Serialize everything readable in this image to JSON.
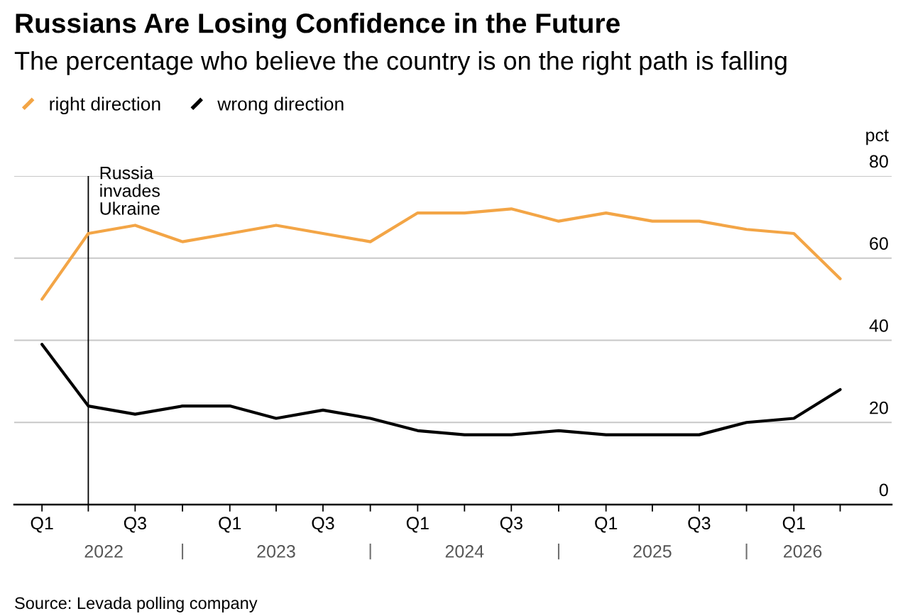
{
  "chart_data": {
    "type": "line",
    "title": "Russians Are Losing Confidence in the Future",
    "subtitle": "The percentage who believe the country is on the right path is falling",
    "x": [
      "2022-01",
      "2022-04",
      "2022-07",
      "2022-10",
      "2023-01",
      "2023-04",
      "2023-07",
      "2023-10",
      "2024-01",
      "2024-04",
      "2024-07",
      "2024-10",
      "2025-01",
      "2025-04",
      "2025-07",
      "2025-10",
      "2026-01",
      "2026-04"
    ],
    "series": [
      {
        "name": "right direction",
        "color": "#f3a546",
        "values": [
          50,
          66,
          68,
          64,
          66,
          68,
          66,
          64,
          71,
          71,
          72,
          69,
          71,
          69,
          69,
          67,
          66,
          55
        ]
      },
      {
        "name": "wrong direction",
        "color": "#000000",
        "values": [
          39,
          24,
          22,
          24,
          24,
          21,
          23,
          21,
          18,
          17,
          17,
          18,
          17,
          17,
          17,
          20,
          21,
          28
        ]
      }
    ],
    "xlim": [
      "2021-11-08",
      "2026-07-10"
    ],
    "xticks": [
      {
        "value": "2022-01",
        "label": "Q1"
      },
      {
        "value": "2022-04",
        "label": null
      },
      {
        "value": "2022-07",
        "label": "Q3"
      },
      {
        "value": "2022-10",
        "label": null
      },
      {
        "value": "2023-01",
        "label": "Q1"
      },
      {
        "value": "2023-04",
        "label": null
      },
      {
        "value": "2023-07",
        "label": "Q3"
      },
      {
        "value": "2023-10",
        "label": null
      },
      {
        "value": "2024-01",
        "label": "Q1"
      },
      {
        "value": "2024-04",
        "label": null
      },
      {
        "value": "2024-07",
        "label": "Q3"
      },
      {
        "value": "2024-10",
        "label": null
      },
      {
        "value": "2025-01",
        "label": "Q1"
      },
      {
        "value": "2025-04",
        "label": null
      },
      {
        "value": "2025-07",
        "label": "Q3"
      },
      {
        "value": "2025-10",
        "label": null
      },
      {
        "value": "2026-01",
        "label": "Q1"
      },
      {
        "value": "2026-04",
        "label": null
      }
    ],
    "x2lim": [
      "2021-11-08",
      "2026-07-10"
    ],
    "x2ticks": [
      {
        "value": "2022-05-01",
        "label": "2022"
      },
      {
        "value": "2022-10",
        "label": null
      },
      {
        "value": "2023-04",
        "label": "2023"
      },
      {
        "value": "2023-10",
        "label": null
      },
      {
        "value": "2024-04",
        "label": "2024"
      },
      {
        "value": "2024-10",
        "label": null
      },
      {
        "value": "2025-04",
        "label": "2025"
      },
      {
        "value": "2025-10",
        "label": null
      },
      {
        "value": "2026-01-18",
        "label": "2026"
      }
    ],
    "ylim": [
      0,
      80
    ],
    "yticks": [
      0,
      20,
      40,
      60,
      80
    ],
    "ylabel": "pct",
    "grid": "y",
    "legend": "top left",
    "line_style": "solid",
    "ref_lines": [
      {
        "axis": "x",
        "value": "2022-04",
        "label": "Russia\ninvades\nUkraine",
        "color": "#000000"
      }
    ],
    "annotations": [
      "Source: Levada polling company"
    ]
  }
}
